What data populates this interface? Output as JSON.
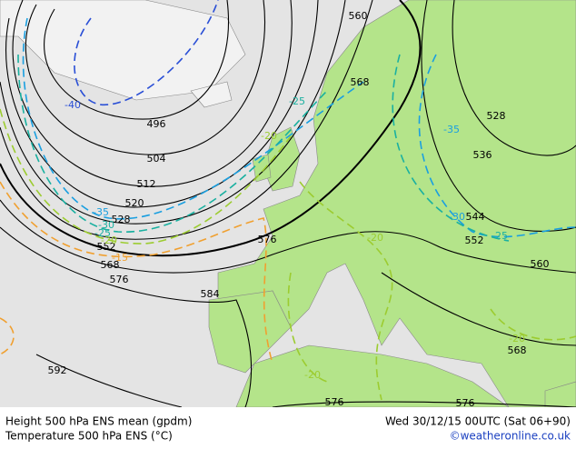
{
  "map": {
    "footer": {
      "left_top": "Height 500 hPa ENS mean (gpdm)",
      "left_bottom": "Temperature 500 hPa ENS (°C)",
      "right_top": "Wed 30/12/15 00UTC (Sat 06+90)",
      "right_bottom": "©weatheronline.co.uk"
    },
    "labels": [
      {
        "text": "560",
        "color": "#000"
      },
      {
        "text": "568",
        "color": "#000"
      },
      {
        "text": "528",
        "color": "#000"
      },
      {
        "text": "536",
        "color": "#000"
      },
      {
        "text": "544",
        "color": "#000"
      },
      {
        "text": "552",
        "color": "#000"
      },
      {
        "text": "560",
        "color": "#000"
      },
      {
        "text": "568",
        "color": "#000"
      },
      {
        "text": "576",
        "color": "#000"
      },
      {
        "text": "576",
        "color": "#000"
      },
      {
        "text": "584",
        "color": "#000"
      },
      {
        "text": "576",
        "color": "#000"
      },
      {
        "text": "496",
        "color": "#000"
      },
      {
        "text": "504",
        "color": "#000"
      },
      {
        "text": "512",
        "color": "#000"
      },
      {
        "text": "520",
        "color": "#000"
      },
      {
        "text": "528",
        "color": "#000"
      },
      {
        "text": "552",
        "color": "#000"
      },
      {
        "text": "568",
        "color": "#000"
      },
      {
        "text": "576",
        "color": "#000"
      },
      {
        "text": "592",
        "color": "#000"
      },
      {
        "text": "-40",
        "color": "#2a4fd6"
      },
      {
        "text": "-25",
        "color": "#1ab0a0"
      },
      {
        "text": "-35",
        "color": "#1a9fe0"
      },
      {
        "text": "-30",
        "color": "#1a9fe0"
      },
      {
        "text": "-25",
        "color": "#1ab0a0"
      },
      {
        "text": "-35",
        "color": "#1a9fe0"
      },
      {
        "text": "-30",
        "color": "#1ab0a0"
      },
      {
        "text": "-25",
        "color": "#1ab0a0"
      },
      {
        "text": "-20",
        "color": "#9ccc30"
      },
      {
        "text": "-15",
        "color": "#f0a030"
      },
      {
        "text": "-20",
        "color": "#9ccc30"
      },
      {
        "text": "-20",
        "color": "#9ccc30"
      },
      {
        "text": "-20",
        "color": "#9ccc30"
      },
      {
        "text": "-20",
        "color": "#9ccc30"
      }
    ]
  }
}
